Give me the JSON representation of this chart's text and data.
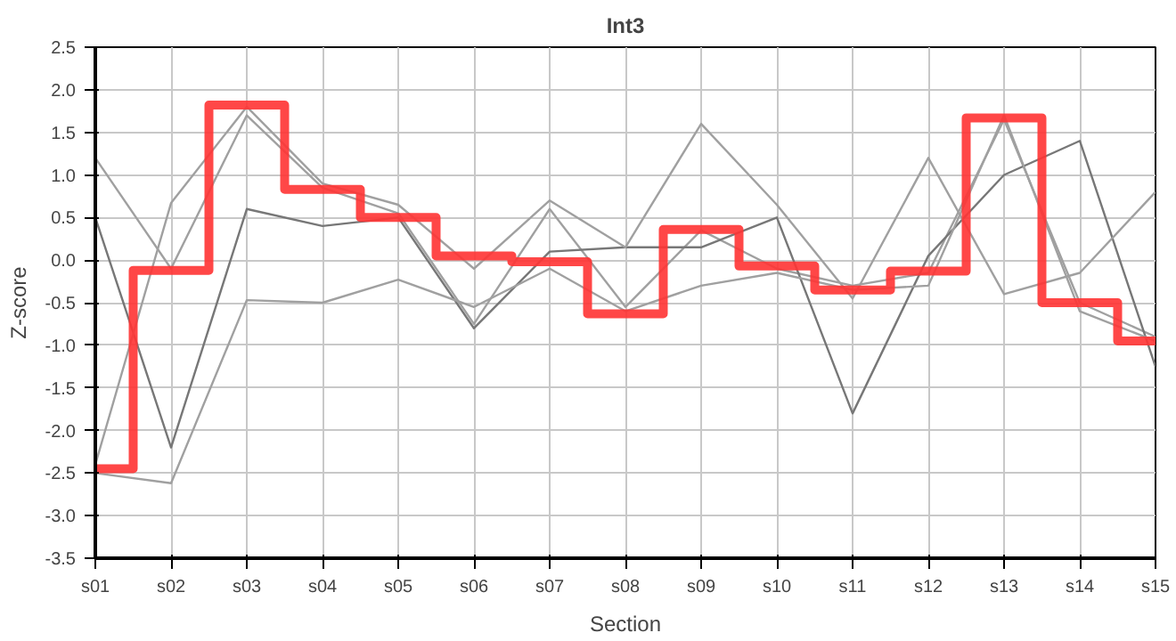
{
  "chart_data": {
    "type": "line",
    "title": "Int3",
    "xlabel": "Section",
    "ylabel": "Z-score",
    "categories": [
      "s01",
      "s02",
      "s03",
      "s04",
      "s05",
      "s06",
      "s07",
      "s08",
      "s09",
      "s10",
      "s11",
      "s12",
      "s13",
      "s14",
      "s15"
    ],
    "ylim": [
      -3.5,
      2.5
    ],
    "yticks": [
      {
        "value": -3.5,
        "label": "-3.5"
      },
      {
        "value": -3,
        "label": "-3.0"
      },
      {
        "value": -2.5,
        "label": "-2.5"
      },
      {
        "value": -2,
        "label": "-2.0"
      },
      {
        "value": -1.5,
        "label": "-1.5"
      },
      {
        "value": -1,
        "label": "-1.0"
      },
      {
        "value": -0.5,
        "label": "-0.5"
      },
      {
        "value": 0,
        "label": "0.0"
      },
      {
        "value": 0.5,
        "label": "0.5"
      },
      {
        "value": 1,
        "label": "1.0"
      },
      {
        "value": 1.5,
        "label": "1.5"
      },
      {
        "value": 2,
        "label": "2.0"
      },
      {
        "value": 2.5,
        "label": "2.5"
      }
    ],
    "grid": true,
    "line_style": "solid",
    "series": [
      {
        "color": "#a0a0a0",
        "values": [
          1.2,
          -0.1,
          1.7,
          0.85,
          0.55,
          -0.75,
          0.6,
          -0.55,
          0.35,
          -0.1,
          -0.3,
          -0.15,
          1.65,
          -0.5,
          -0.9
        ]
      },
      {
        "color": "#777777",
        "values": [
          0.5,
          -2.2,
          0.6,
          0.4,
          0.5,
          -0.8,
          0.1,
          0.15,
          0.15,
          0.5,
          -1.8,
          0.05,
          1.0,
          1.4,
          -1.25
        ]
      },
      {
        "color": "#a0a0a0",
        "values": [
          -2.4,
          0.67,
          1.8,
          0.9,
          0.65,
          -0.1,
          0.7,
          0.15,
          1.6,
          0.65,
          -0.45,
          1.2,
          -0.4,
          -0.15,
          0.8
        ]
      },
      {
        "color": "#a0a0a0",
        "values": [
          -2.5,
          -2.62,
          -0.47,
          -0.5,
          -0.23,
          -0.55,
          -0.1,
          -0.6,
          -0.3,
          -0.15,
          -0.35,
          -0.3,
          1.7,
          -0.6,
          -0.95
        ]
      },
      {
        "type": "step",
        "color": "#ff3333",
        "values": [
          -2.45,
          -0.12,
          1.82,
          0.83,
          0.5,
          0.05,
          -0.02,
          -0.63,
          0.36,
          -0.07,
          -0.35,
          -0.13,
          1.67,
          -0.5,
          -0.95
        ]
      }
    ]
  }
}
